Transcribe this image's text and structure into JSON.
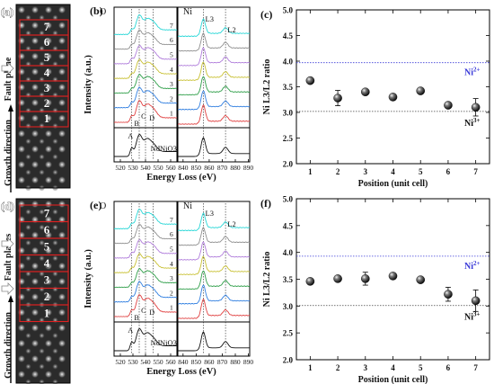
{
  "figure": {
    "rows": [
      {
        "image_panel": {
          "label": "(a)",
          "cell_numbers": [
            "7",
            "6",
            "5",
            "4",
            "3",
            "2",
            "1"
          ],
          "side_label": "Fault plane",
          "growth_label": "Growth direction"
        },
        "spectra_panel": {
          "label": "(b)",
          "ylabel": "Intensity (a.u.)",
          "xlabel": "Energy Loss (eV)",
          "o_title": "O",
          "ni_title": "Ni",
          "o_ticks": [
            "520",
            "530",
            "540",
            "550",
            "560"
          ],
          "ni_ticks": [
            "840",
            "850",
            "860",
            "870",
            "880",
            "890"
          ],
          "trace_numbers": [
            "7",
            "6",
            "5",
            "4",
            "3",
            "2",
            "1"
          ],
          "peak_letters": [
            "A",
            "B",
            "C",
            "D"
          ],
          "reference_label": "NdNiO3",
          "ni_edges": [
            "L3",
            "L2"
          ]
        },
        "ratio_panel": {
          "label": "(c)"
        }
      },
      {
        "image_panel": {
          "label": "(d)",
          "cell_numbers": [
            "7",
            "6",
            "5",
            "4",
            "3",
            "2",
            "1"
          ],
          "side_label": "Fault planes",
          "growth_label": "Growth direction"
        },
        "spectra_panel": {
          "label": "(e)",
          "ylabel": "Intensity (a.u.)",
          "xlabel": "Energy Loss (eV)",
          "o_title": "O",
          "ni_title": "Ni",
          "o_ticks": [
            "520",
            "530",
            "540",
            "550",
            "560"
          ],
          "ni_ticks": [
            "840",
            "850",
            "860",
            "870",
            "880",
            "890"
          ],
          "trace_numbers": [
            "7",
            "6",
            "5",
            "4",
            "3",
            "2",
            "1"
          ],
          "peak_letters": [
            "A",
            "B",
            "C",
            "D"
          ],
          "reference_label": "NdNiO3",
          "ni_edges": [
            "L3",
            "L2"
          ]
        },
        "ratio_panel": {
          "label": "(f)"
        }
      }
    ]
  },
  "colors": {
    "traces": [
      "#25d6d6",
      "#8e8e8e",
      "#b07ddb",
      "#c8c032",
      "#2e9e48",
      "#2f7ee0",
      "#e04040"
    ],
    "reference": "#111111",
    "ni2_line": "#3a3ad8",
    "ni3_line": "#444444",
    "box": "#e02020"
  },
  "chart_data": [
    {
      "type": "scatter",
      "panel": "(c)",
      "xlabel": "Position (unit cell)",
      "ylabel": "Ni L3/L2 ratio",
      "x": [
        1,
        2,
        3,
        4,
        5,
        6,
        7
      ],
      "y": [
        3.62,
        3.28,
        3.4,
        3.3,
        3.42,
        3.14,
        3.1
      ],
      "y_err": [
        0.05,
        0.15,
        0.05,
        0.05,
        0.05,
        0.05,
        0.17
      ],
      "xlim": [
        0.5,
        7.5
      ],
      "ylim": [
        2.0,
        5.0
      ],
      "xticks": [
        "1",
        "2",
        "3",
        "4",
        "5",
        "6",
        "7"
      ],
      "yticks": [
        "2.0",
        "2.5",
        "3.0",
        "3.5",
        "4.0",
        "4.5",
        "5.0"
      ],
      "reference_lines": [
        {
          "label": "Ni2+",
          "y": 3.97
        },
        {
          "label": "Ni3+",
          "y": 3.02
        }
      ]
    },
    {
      "type": "scatter",
      "panel": "(f)",
      "xlabel": "Position (unit cell)",
      "ylabel": "Ni L3/L2 ratio",
      "x": [
        1,
        2,
        3,
        4,
        5,
        6,
        7
      ],
      "y": [
        3.46,
        3.51,
        3.51,
        3.56,
        3.49,
        3.22,
        3.1
      ],
      "y_err": [
        0.04,
        0.04,
        0.12,
        0.05,
        0.05,
        0.13,
        0.2
      ],
      "xlim": [
        0.5,
        7.5
      ],
      "ylim": [
        2.0,
        5.0
      ],
      "xticks": [
        "1",
        "2",
        "3",
        "4",
        "5",
        "6",
        "7"
      ],
      "yticks": [
        "2.0",
        "2.5",
        "3.0",
        "3.5",
        "4.0",
        "4.5",
        "5.0"
      ],
      "reference_lines": [
        {
          "label": "Ni2+",
          "y": 3.93
        },
        {
          "label": "Ni3+",
          "y": 3.01
        }
      ]
    }
  ]
}
